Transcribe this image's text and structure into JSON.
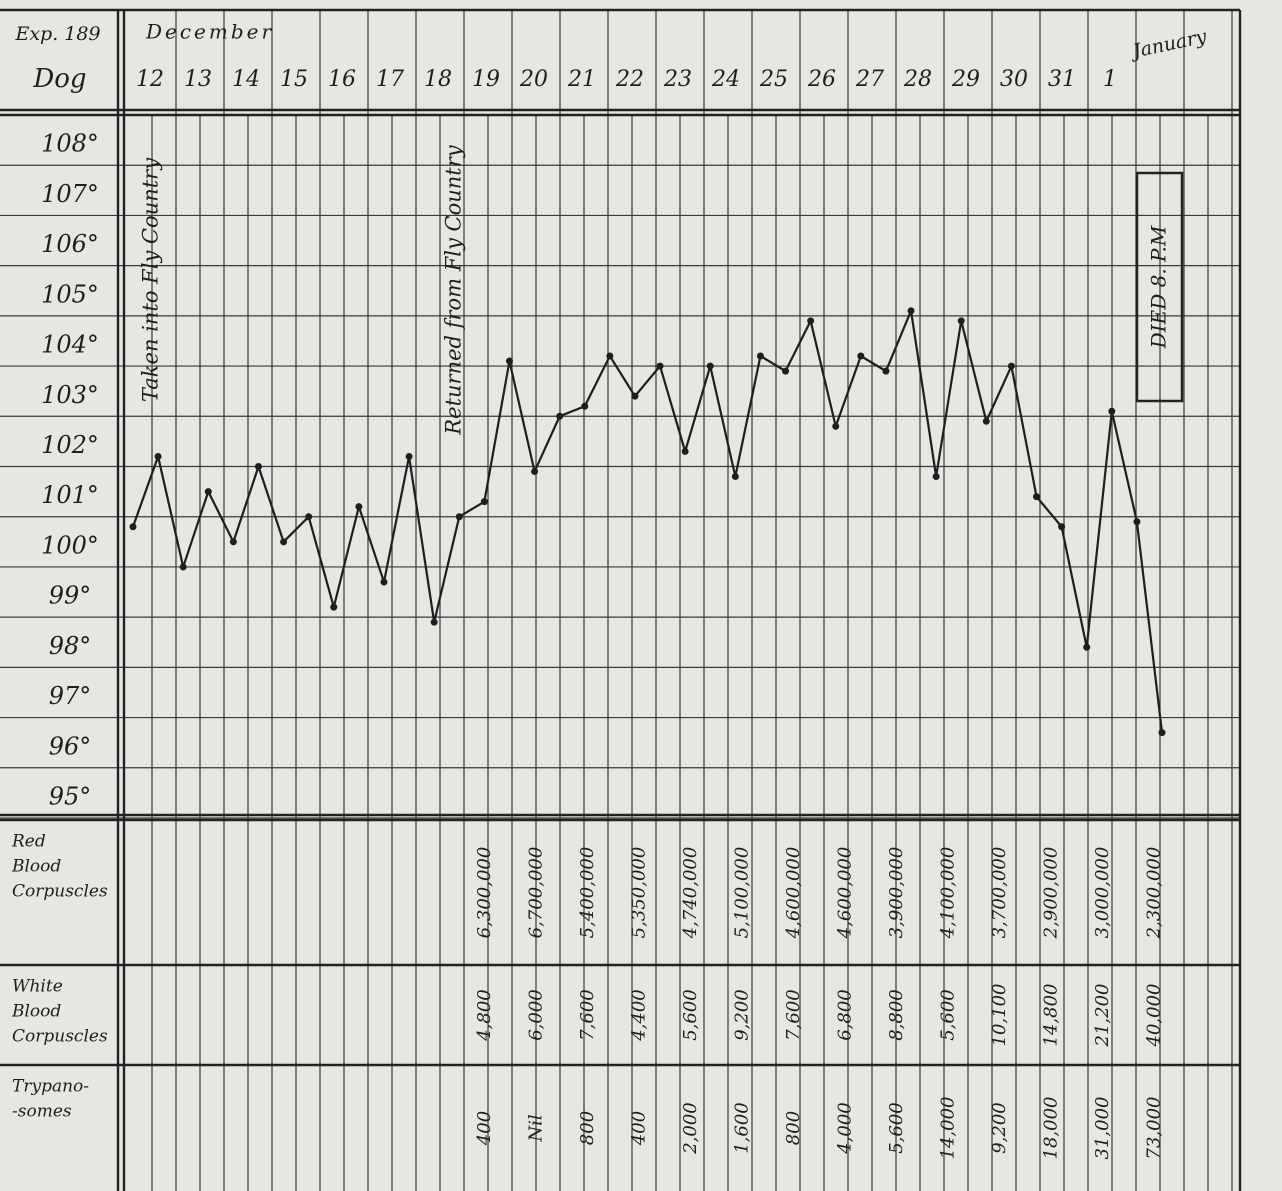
{
  "header": {
    "experiment": "Exp. 189",
    "subject": "Dog",
    "month_start": "December",
    "month_end": "January",
    "days": [
      "12",
      "13",
      "14",
      "15",
      "16",
      "17",
      "18",
      "19",
      "20",
      "21",
      "22",
      "23",
      "24",
      "25",
      "26",
      "27",
      "28",
      "29",
      "30",
      "31",
      "1"
    ]
  },
  "chart_data": {
    "type": "line",
    "color": "#1e1e1e",
    "values": [
      100.8,
      102.2,
      100.0,
      101.5,
      100.5,
      102.0,
      100.5,
      101.0,
      99.2,
      101.2,
      99.7,
      102.2,
      98.9,
      101.0,
      101.3,
      104.1,
      101.9,
      103.0,
      103.2,
      104.2,
      103.4,
      104.0,
      102.3,
      104.0,
      101.8,
      104.2,
      103.9,
      104.9,
      102.8,
      104.2,
      103.9,
      105.1,
      101.8,
      104.9,
      102.9,
      104.0,
      101.4,
      100.8,
      98.4,
      103.1,
      100.9,
      96.7
    ],
    "ylim": [
      95,
      109
    ],
    "yticks": [
      {
        "value": 108,
        "label": "108°"
      },
      {
        "value": 107,
        "label": "107°"
      },
      {
        "value": 106,
        "label": "106°"
      },
      {
        "value": 105,
        "label": "105°"
      },
      {
        "value": 104,
        "label": "104°"
      },
      {
        "value": 103,
        "label": "103°"
      },
      {
        "value": 102,
        "label": "102°"
      },
      {
        "value": 101,
        "label": "101°"
      },
      {
        "value": 100,
        "label": "100°"
      },
      {
        "value": 99,
        "label": "99°"
      },
      {
        "value": 98,
        "label": "98°"
      },
      {
        "value": 97,
        "label": "97°"
      },
      {
        "value": 96,
        "label": "96°"
      },
      {
        "value": 95,
        "label": "95°"
      }
    ],
    "grid": true,
    "annotations": [
      "Taken into Fly Country",
      "Returned from Fly Country",
      "DIED 8. P.M"
    ]
  },
  "table": {
    "rows": [
      {
        "label": [
          "Red",
          "Blood",
          "Corpuscles"
        ],
        "values": [
          "6,300,000",
          "6,700,000",
          "5,400,000",
          "5,350,000",
          "4,740,000",
          "5,100,000",
          "4,600,000",
          "4,600,000",
          "3,900,000",
          "4,100,000",
          "3,700,000",
          "2,900,000",
          "3,000,000",
          "2,300,000"
        ]
      },
      {
        "label": [
          "White",
          "Blood",
          "Corpuscles"
        ],
        "values": [
          "4,800",
          "6,000",
          "7,600",
          "4,400",
          "5,600",
          "9,200",
          "7,600",
          "6,800",
          "8,800",
          "5,600",
          "10,100",
          "14,800",
          "21,200",
          "40,000"
        ]
      },
      {
        "label": [
          "Trypano-",
          "-somes"
        ],
        "values": [
          "400",
          "Nil",
          "800",
          "400",
          "2,000",
          "1,600",
          "800",
          "4,000",
          "5,600",
          "14,000",
          "9,200",
          "18,000",
          "31,000",
          "73,000"
        ]
      }
    ]
  }
}
